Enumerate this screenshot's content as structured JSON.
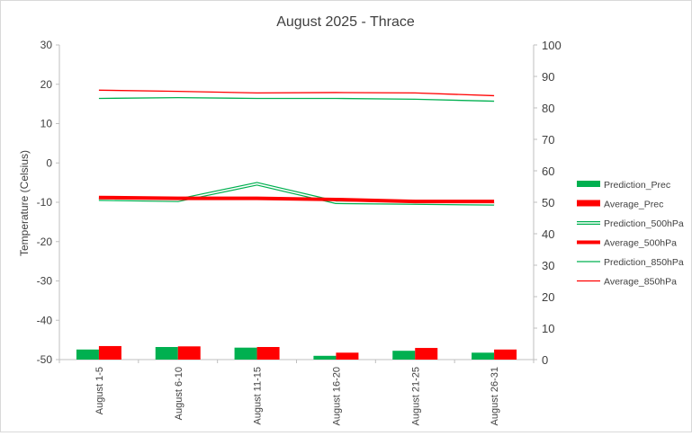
{
  "chart_data": {
    "type": "bar+line",
    "title": "August 2025 - Thrace",
    "ylabel": "Temperature  (Celsius)",
    "y2label": "",
    "categories": [
      "August 1-5",
      "August 6-10",
      "August 11-15",
      "August 16-20",
      "August 21-25",
      "August 26-31"
    ],
    "ylim": [
      -50,
      30
    ],
    "yticks": [
      30,
      20,
      10,
      0,
      -10,
      -20,
      -30,
      -40,
      -50
    ],
    "y2lim": [
      0,
      100
    ],
    "y2ticks": [
      100,
      90,
      80,
      70,
      60,
      50,
      40,
      30,
      20,
      10,
      0
    ],
    "grid": false,
    "legend_position": "right",
    "series": [
      {
        "name": "Prediction_Prec",
        "kind": "bar",
        "axis": "right",
        "color": "#00b050",
        "values": [
          3.2,
          4.0,
          3.8,
          1.2,
          2.8,
          2.2
        ]
      },
      {
        "name": "Average_Prec",
        "kind": "bar",
        "axis": "right",
        "color": "#ff0000",
        "values": [
          4.3,
          4.2,
          4.0,
          2.2,
          3.7,
          3.2
        ]
      },
      {
        "name": "Prediction_500hPa",
        "kind": "line",
        "style": "double",
        "axis": "left",
        "color": "#00b050",
        "values": [
          -9.2,
          -9.5,
          -5.3,
          -10.0,
          -10.2,
          -10.4
        ]
      },
      {
        "name": "Average_500hPa",
        "kind": "line",
        "style": "thick",
        "axis": "left",
        "color": "#ff0000",
        "values": [
          -8.8,
          -9.0,
          -9.0,
          -9.3,
          -9.8,
          -9.8
        ]
      },
      {
        "name": "Prediction_850hPa",
        "kind": "line",
        "style": "thin",
        "axis": "left",
        "color": "#00b050",
        "values": [
          16.4,
          16.6,
          16.4,
          16.4,
          16.2,
          15.7
        ]
      },
      {
        "name": "Average_850hPa",
        "kind": "line",
        "style": "thin",
        "axis": "left",
        "color": "#ff0000",
        "values": [
          18.5,
          18.2,
          17.8,
          17.9,
          17.8,
          17.1
        ]
      }
    ]
  }
}
